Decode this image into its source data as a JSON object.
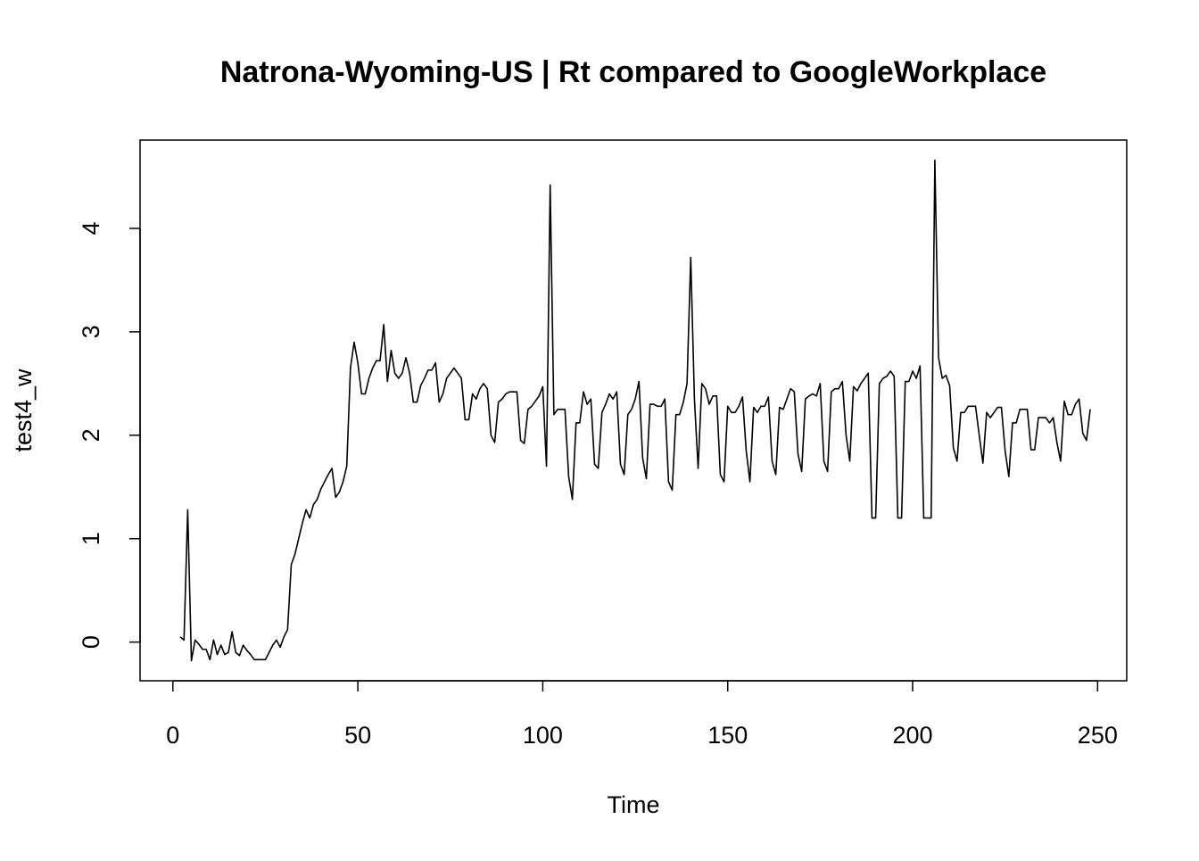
{
  "chart_data": {
    "type": "line",
    "title": "Natrona-Wyoming-US | Rt compared to GoogleWorkplace",
    "x_label": "Time",
    "y_label": "test4_w",
    "color": "#000000",
    "x": [
      1,
      2,
      3,
      4,
      5,
      6,
      7,
      8,
      9,
      10,
      11,
      12,
      13,
      14,
      15,
      16,
      17,
      18,
      19,
      20,
      21,
      22,
      23,
      24,
      25,
      26,
      27,
      28,
      29,
      30,
      31,
      32,
      33,
      34,
      35,
      36,
      37,
      38,
      39,
      40,
      41,
      42,
      43,
      44,
      45,
      46,
      47,
      48,
      49,
      50,
      51,
      52,
      53,
      54,
      55,
      56,
      57,
      58,
      59,
      60,
      61,
      62,
      63,
      64,
      65,
      66,
      67,
      68,
      69,
      70,
      71,
      72,
      73,
      74,
      75,
      76,
      77,
      78,
      79,
      80,
      81,
      82,
      83,
      84,
      85,
      86,
      87,
      88,
      89,
      90,
      91,
      92,
      93,
      94,
      95,
      96,
      97,
      98,
      99,
      100,
      101,
      102,
      103,
      104,
      105,
      106,
      107,
      108,
      109,
      110,
      111,
      112,
      113,
      114,
      115,
      116,
      117,
      118,
      119,
      120,
      121,
      122,
      123,
      124,
      125,
      126,
      127,
      128,
      129,
      130,
      131,
      132,
      133,
      134,
      135,
      136,
      137,
      138,
      139,
      140,
      141,
      142,
      143,
      144,
      145,
      146,
      147,
      148,
      149,
      150,
      151,
      152,
      153,
      154,
      155,
      156,
      157,
      158,
      159,
      160,
      161,
      162,
      163,
      164,
      165,
      166,
      167,
      168,
      169,
      170,
      171,
      172,
      173,
      174,
      175,
      176,
      177,
      178,
      179,
      180,
      181,
      182,
      183,
      184,
      185,
      186,
      187,
      188,
      189,
      190,
      191,
      192,
      193,
      194,
      195,
      196,
      197,
      198,
      199,
      200,
      201,
      202,
      203,
      204,
      205,
      206,
      207,
      208,
      209,
      210,
      211,
      212,
      213,
      214,
      215,
      216,
      217,
      218,
      219,
      220,
      221,
      222,
      223,
      224,
      225,
      226,
      227,
      228,
      229,
      230,
      231,
      232,
      233,
      234,
      235,
      236,
      237,
      238,
      239,
      240,
      241,
      242,
      243,
      244,
      245,
      246,
      247,
      248
    ],
    "values": [
      null,
      0.05,
      0.02,
      1.28,
      -0.18,
      0.02,
      -0.02,
      -0.07,
      -0.07,
      -0.17,
      0.02,
      -0.12,
      -0.03,
      -0.12,
      -0.1,
      0.1,
      -0.1,
      -0.13,
      -0.03,
      -0.08,
      -0.12,
      -0.17,
      -0.17,
      -0.17,
      -0.17,
      -0.1,
      -0.03,
      0.02,
      -0.05,
      0.05,
      0.12,
      0.75,
      0.85,
      1.0,
      1.15,
      1.28,
      1.2,
      1.33,
      1.38,
      1.48,
      1.55,
      1.62,
      1.68,
      1.4,
      1.45,
      1.55,
      1.7,
      2.65,
      2.9,
      2.7,
      2.4,
      2.4,
      2.55,
      2.65,
      2.72,
      2.72,
      3.07,
      2.52,
      2.82,
      2.6,
      2.55,
      2.6,
      2.75,
      2.6,
      2.32,
      2.32,
      2.48,
      2.55,
      2.63,
      2.63,
      2.7,
      2.32,
      2.4,
      2.55,
      2.6,
      2.65,
      2.6,
      2.55,
      2.15,
      2.15,
      2.4,
      2.35,
      2.45,
      2.5,
      2.45,
      2.0,
      1.93,
      2.32,
      2.35,
      2.4,
      2.42,
      2.42,
      2.42,
      1.95,
      1.92,
      2.25,
      2.28,
      2.33,
      2.38,
      2.47,
      1.7,
      4.42,
      2.2,
      2.25,
      2.25,
      2.25,
      1.6,
      1.38,
      2.12,
      2.12,
      2.42,
      2.3,
      2.35,
      1.72,
      1.68,
      2.22,
      2.3,
      2.4,
      2.35,
      2.42,
      1.72,
      1.62,
      2.2,
      2.25,
      2.35,
      2.52,
      1.78,
      1.58,
      2.3,
      2.3,
      2.28,
      2.28,
      2.35,
      1.55,
      1.47,
      2.2,
      2.2,
      2.32,
      2.5,
      3.72,
      2.35,
      1.68,
      2.5,
      2.45,
      2.3,
      2.38,
      2.38,
      1.62,
      1.55,
      2.28,
      2.22,
      2.22,
      2.28,
      2.37,
      1.85,
      1.55,
      2.27,
      2.22,
      2.28,
      2.28,
      2.37,
      1.75,
      1.62,
      2.27,
      2.25,
      2.35,
      2.45,
      2.42,
      1.82,
      1.65,
      2.35,
      2.38,
      2.4,
      2.38,
      2.5,
      1.75,
      1.65,
      2.42,
      2.45,
      2.45,
      2.52,
      2.0,
      1.75,
      2.47,
      2.43,
      2.5,
      2.55,
      2.6,
      1.2,
      1.2,
      2.5,
      2.55,
      2.57,
      2.62,
      2.57,
      1.2,
      1.2,
      2.52,
      2.52,
      2.62,
      2.55,
      2.67,
      1.2,
      1.2,
      1.2,
      4.66,
      2.75,
      2.55,
      2.58,
      2.48,
      1.88,
      1.75,
      2.22,
      2.22,
      2.28,
      2.28,
      2.28,
      2.0,
      1.73,
      2.22,
      2.17,
      2.22,
      2.27,
      2.27,
      1.85,
      1.6,
      2.12,
      2.12,
      2.25,
      2.25,
      2.25,
      1.86,
      1.86,
      2.17,
      2.17,
      2.17,
      2.12,
      2.17,
      1.93,
      1.75,
      2.33,
      2.2,
      2.2,
      2.3,
      2.35,
      2.02,
      1.95,
      2.25
    ],
    "xlim": [
      -8.88,
      257.88
    ],
    "xticks": [
      0,
      50,
      100,
      150,
      200,
      250
    ],
    "ylim": [
      -0.374,
      4.854
    ],
    "yticks": [
      0,
      1,
      2,
      3,
      4
    ]
  }
}
